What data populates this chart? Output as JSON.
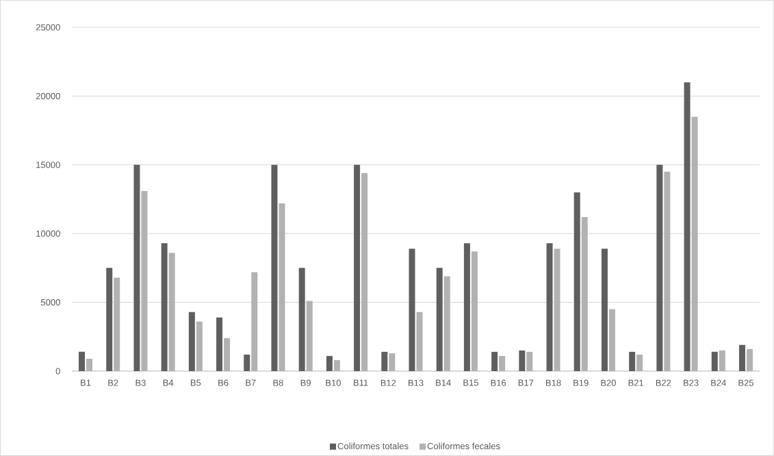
{
  "chart_data": {
    "type": "bar",
    "categories": [
      "B1",
      "B2",
      "B3",
      "B4",
      "B5",
      "B6",
      "B7",
      "B8",
      "B9",
      "B10",
      "B11",
      "B12",
      "B13",
      "B14",
      "B15",
      "B16",
      "B17",
      "B18",
      "B19",
      "B20",
      "B21",
      "B22",
      "B23",
      "B24",
      "B25"
    ],
    "series": [
      {
        "name": "Coliformes totales",
        "color": "#5f5f5f",
        "values": [
          1400,
          7500,
          15000,
          9300,
          4300,
          3900,
          1200,
          15000,
          7500,
          1100,
          15000,
          1400,
          8900,
          7500,
          9300,
          1400,
          1500,
          9300,
          13000,
          8900,
          1400,
          15000,
          21000,
          1400,
          1900
        ]
      },
      {
        "name": "Coliformes fecales",
        "color": "#b2b2b2",
        "values": [
          900,
          6800,
          13100,
          8600,
          3600,
          2400,
          7200,
          12200,
          5100,
          800,
          14400,
          1300,
          4300,
          6900,
          8700,
          1100,
          1400,
          8900,
          11200,
          4500,
          1200,
          14500,
          18500,
          1500,
          1600
        ]
      }
    ],
    "ylim": [
      0,
      25000
    ],
    "yticks": [
      0,
      5000,
      10000,
      15000,
      20000,
      25000
    ],
    "grid": "y",
    "legend": "bottom"
  }
}
